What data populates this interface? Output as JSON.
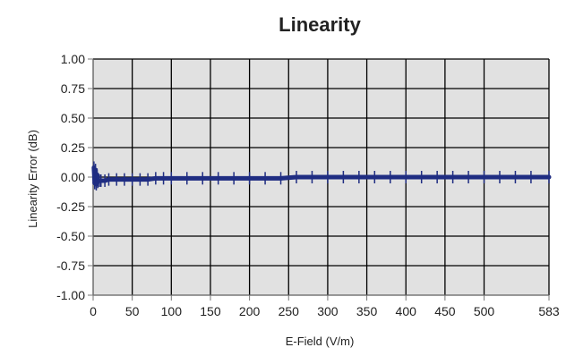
{
  "chart_data": {
    "type": "line",
    "title": "Linearity",
    "xlabel": "E-Field (V/m)",
    "ylabel": "Linearity Error (dB)",
    "xlim": [
      0,
      583
    ],
    "ylim": [
      -1.0,
      1.0
    ],
    "x_ticks": [
      0,
      50,
      100,
      150,
      200,
      250,
      300,
      350,
      400,
      450,
      500,
      583
    ],
    "x_tick_labels": [
      "0",
      "50",
      "100",
      "150",
      "200",
      "250",
      "300",
      "350",
      "400",
      "450",
      "500",
      "583"
    ],
    "y_ticks": [
      1.0,
      0.75,
      0.5,
      0.25,
      0.0,
      -0.25,
      -0.5,
      -0.75,
      -1.0
    ],
    "y_tick_labels": [
      "1.00",
      "0.75",
      "0.50",
      "0.25",
      "0.00",
      "-0.25",
      "-0.50",
      "-0.75",
      "-1.00"
    ],
    "grid": true,
    "colors": {
      "plot_background": "#e1e1e1",
      "grid": "#000000",
      "series": "#1f2d82",
      "axis": "#777777"
    },
    "series": [
      {
        "x": [
          1,
          2,
          3,
          4,
          5,
          6,
          8,
          10,
          15,
          20,
          30,
          40,
          50,
          60,
          70,
          80,
          90,
          100,
          120,
          140,
          160,
          180,
          200,
          220,
          240,
          260,
          280,
          300,
          320,
          340,
          360,
          380,
          400,
          420,
          440,
          460,
          480,
          500,
          520,
          540,
          560,
          583
        ],
        "y": [
          0.08,
          -0.05,
          0.06,
          -0.06,
          0.02,
          -0.04,
          -0.03,
          -0.03,
          -0.03,
          -0.02,
          -0.02,
          -0.02,
          -0.02,
          -0.02,
          -0.02,
          -0.01,
          -0.01,
          -0.01,
          -0.01,
          -0.01,
          -0.01,
          -0.01,
          -0.01,
          -0.01,
          -0.01,
          0.0,
          0.0,
          0.0,
          0.0,
          0.0,
          0.0,
          0.0,
          0.0,
          0.0,
          0.0,
          0.0,
          0.0,
          0.0,
          0.0,
          0.0,
          0.0,
          0.0
        ]
      }
    ]
  }
}
